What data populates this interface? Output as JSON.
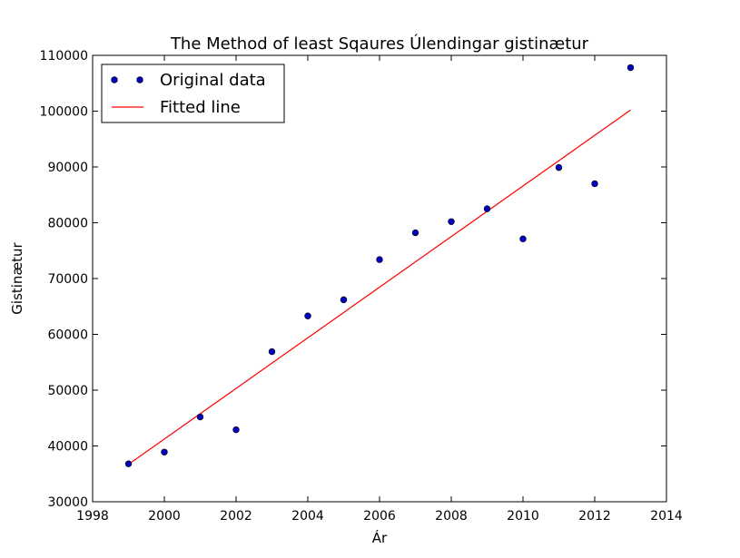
{
  "chart_data": {
    "type": "scatter",
    "title": "The Method of least Sqaures Úlendingar gistinætur",
    "xlabel": "Ár",
    "ylabel": "Gistinætur",
    "xlim": [
      1998,
      2014
    ],
    "ylim": [
      30000,
      110000
    ],
    "xticks": [
      "1998",
      "2000",
      "2002",
      "2004",
      "2006",
      "2008",
      "2010",
      "2012",
      "2014"
    ],
    "yticks": [
      "30000",
      "40000",
      "50000",
      "60000",
      "70000",
      "80000",
      "90000",
      "100000",
      "110000"
    ],
    "legend_position": "top-left",
    "series": [
      {
        "name": "Original data",
        "kind": "points",
        "color": "#0000bf",
        "x": [
          1999,
          2000,
          2001,
          2002,
          2003,
          2004,
          2005,
          2006,
          2007,
          2008,
          2009,
          2010,
          2011,
          2012,
          2013
        ],
        "y": [
          36800,
          38900,
          45200,
          42900,
          56900,
          63300,
          66200,
          73400,
          78200,
          80200,
          82500,
          77100,
          89900,
          87000,
          107800
        ]
      },
      {
        "name": "Fitted line",
        "kind": "line",
        "color": "#ff0000",
        "x": [
          1999,
          2013
        ],
        "y": [
          36700,
          100200
        ]
      }
    ]
  }
}
